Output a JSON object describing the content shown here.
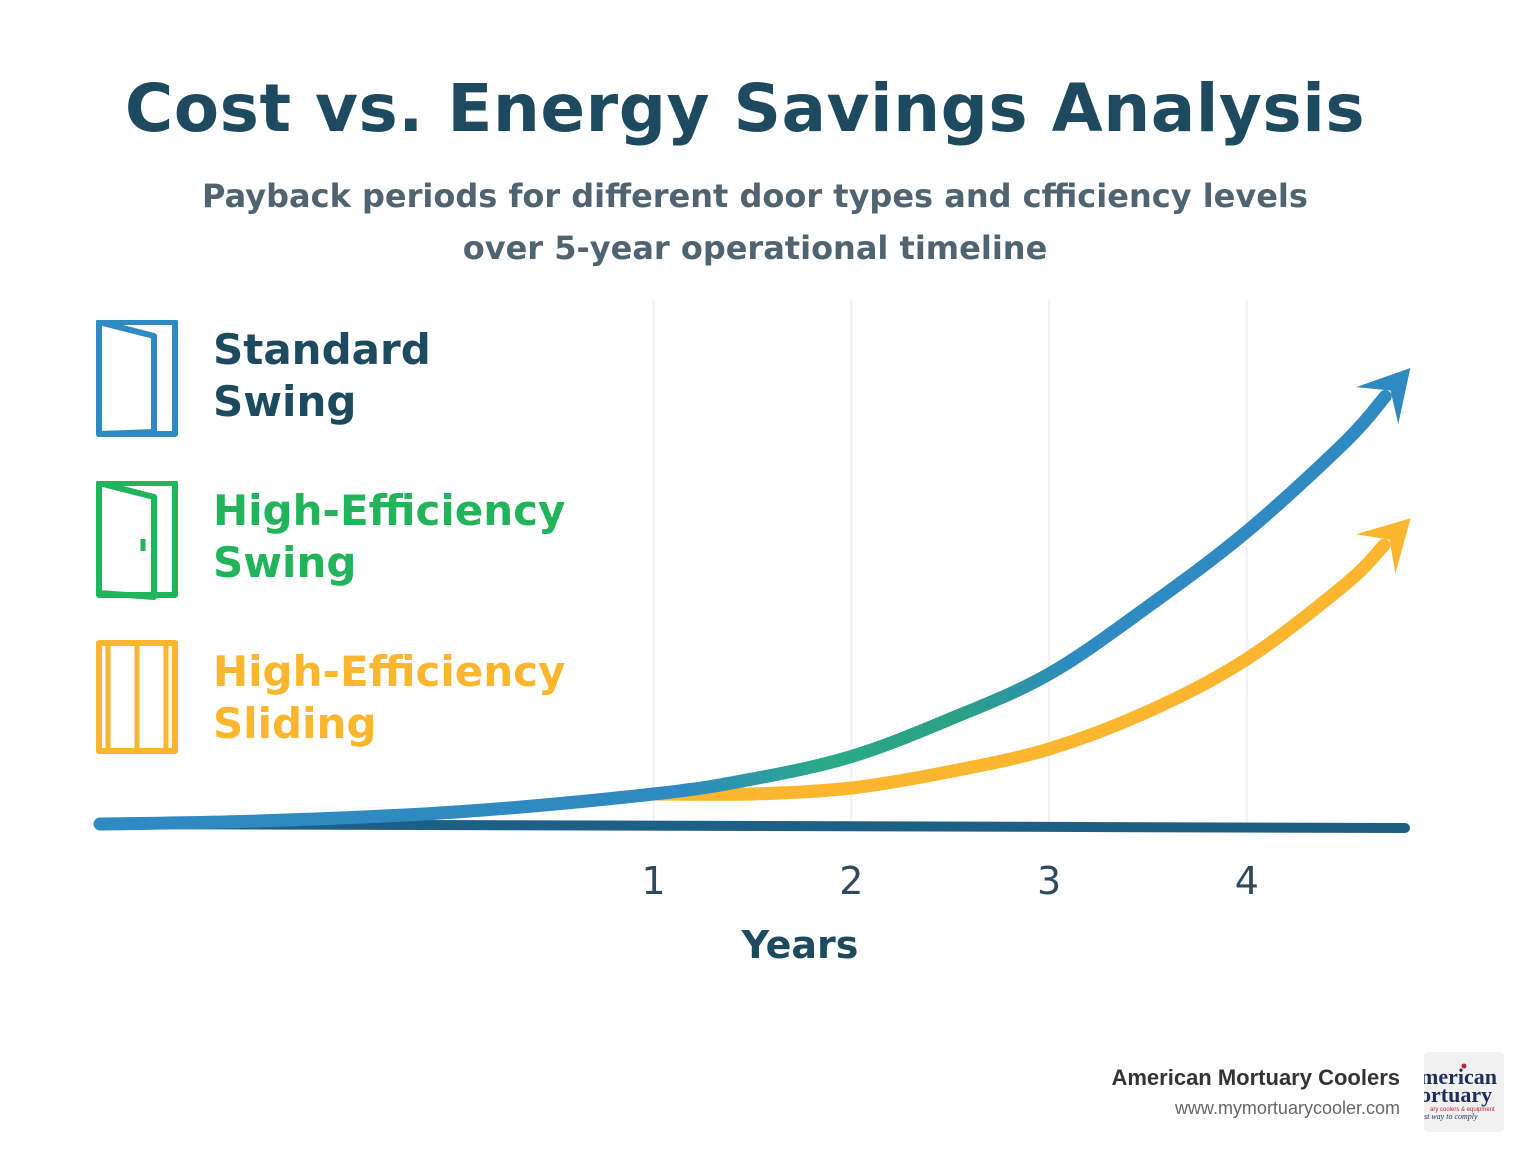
{
  "title": "Cost vs. Energy Savings Analysis",
  "subtitle_lines": [
    "Payback periods for different door types and cfficiency levels",
    "over 5-year operational timeline"
  ],
  "legend": [
    {
      "line1": "Standard",
      "line2": "Swing",
      "color": "#2e8ac0",
      "icon": "door-open-icon"
    },
    {
      "line1": "High-Efficiency",
      "line2": "Swing",
      "color": "#22b45a",
      "icon": "door-handle-icon"
    },
    {
      "line1": "High-Efficiency",
      "line2": "Sliding",
      "color": "#fbb630",
      "icon": "sliding-door-icon"
    }
  ],
  "chart_data": {
    "type": "line",
    "xlabel": "Years",
    "ylabel": "",
    "x_ticks": [
      1,
      2,
      3,
      4
    ],
    "xlim": [
      -1.8,
      4.8
    ],
    "grid": "vertical",
    "legend_position": "left",
    "series": [
      {
        "name": "Standard Swing",
        "color": "#2e8ac0",
        "x": [
          -1.8,
          -1,
          0,
          1,
          1.5,
          2,
          2.5,
          3,
          3.5,
          4,
          4.5,
          4.8
        ],
        "y": [
          0,
          0.02,
          0.08,
          0.2,
          0.3,
          0.45,
          0.7,
          1.0,
          1.45,
          1.95,
          2.55,
          3.0
        ]
      },
      {
        "name": "High-Efficiency Sliding",
        "color": "#fbb630",
        "x": [
          1,
          1.5,
          2,
          2.5,
          3,
          3.5,
          4,
          4.5,
          4.8
        ],
        "y": [
          0.2,
          0.2,
          0.24,
          0.35,
          0.5,
          0.75,
          1.1,
          1.6,
          2.0
        ]
      }
    ]
  },
  "brand": {
    "name": "American Mortuary Coolers",
    "url": "www.mymortuarycooler.com",
    "logo_line1": "merican",
    "logo_line2": "ortuary",
    "logo_line3": "ary coolers & equipment",
    "logo_line4": "st way to comply"
  }
}
